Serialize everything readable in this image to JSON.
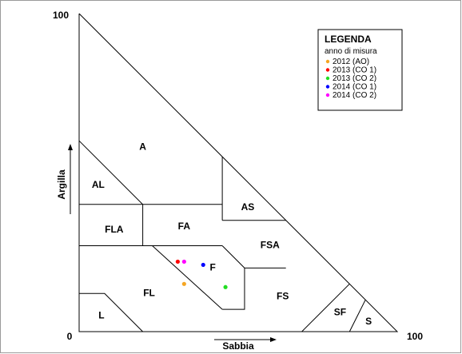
{
  "chart_data": {
    "type": "scatter",
    "title": "",
    "diagram_kind": "soil texture triangle",
    "xlabel": "Sabbia",
    "ylabel": "Argilla",
    "xlim": [
      0,
      100
    ],
    "ylim": [
      0,
      100
    ],
    "axis_tick_labels": {
      "origin": "0",
      "x_max": "100",
      "y_max": "100"
    },
    "regions": [
      {
        "label": "A"
      },
      {
        "label": "AL"
      },
      {
        "label": "AS"
      },
      {
        "label": "FLA"
      },
      {
        "label": "FA"
      },
      {
        "label": "FSA"
      },
      {
        "label": "F"
      },
      {
        "label": "FL"
      },
      {
        "label": "FS"
      },
      {
        "label": "L"
      },
      {
        "label": "SF"
      },
      {
        "label": "S"
      }
    ],
    "legend": {
      "title": "LEGENDA",
      "subtitle": "anno di misura",
      "placement": "top-right"
    },
    "series": [
      {
        "name": "2012 (AO)",
        "color": "#f5a623",
        "points": [
          {
            "x": 33,
            "y": 15
          }
        ]
      },
      {
        "name": "2013 (CO 1)",
        "color": "#ff0000",
        "points": [
          {
            "x": 31,
            "y": 22
          }
        ]
      },
      {
        "name": "2013 (CO 2)",
        "color": "#22dd22",
        "points": [
          {
            "x": 46,
            "y": 14
          }
        ]
      },
      {
        "name": "2014 (CO 1)",
        "color": "#0000ff",
        "points": [
          {
            "x": 39,
            "y": 21
          }
        ]
      },
      {
        "name": "2014 (CO 2)",
        "color": "#ff00ff",
        "points": [
          {
            "x": 33,
            "y": 22
          }
        ]
      }
    ]
  }
}
